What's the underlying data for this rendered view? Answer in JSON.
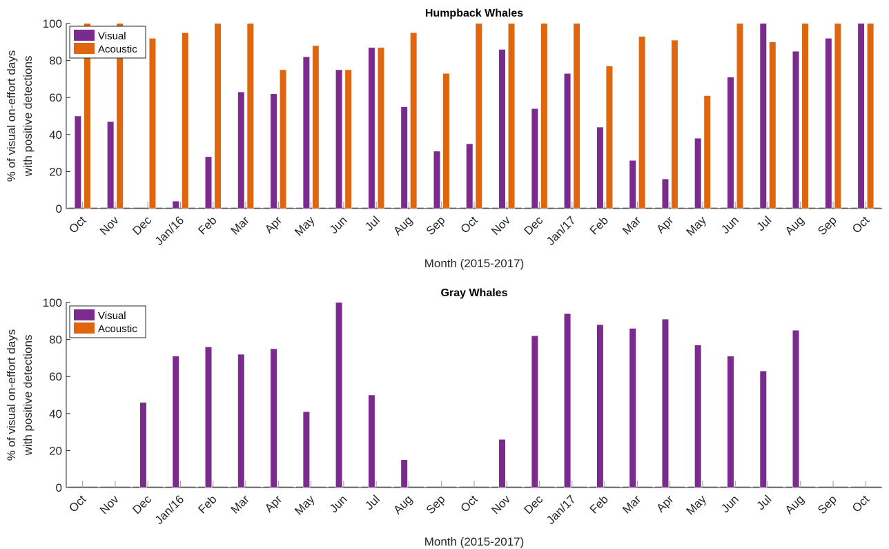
{
  "colors": {
    "visual": "#7B2A8E",
    "acoustic": "#E0650F",
    "axis": "#262626"
  },
  "chart_data": [
    {
      "type": "bar",
      "title": "Humpback Whales",
      "xlabel": "Month (2015-2017)",
      "ylabel_line1": "% of visual on-effort days",
      "ylabel_line2": "with positive detections",
      "ylim": [
        0,
        100
      ],
      "yticks": [
        "0",
        "20",
        "40",
        "60",
        "80",
        "100"
      ],
      "legend": "top-left",
      "grid": false,
      "categories": [
        "Oct",
        "Nov",
        "Dec",
        "Jan/16",
        "Feb",
        "Mar",
        "Apr",
        "May",
        "Jun",
        "Jul",
        "Aug",
        "Sep",
        "Oct",
        "Nov",
        "Dec",
        "Jan/17",
        "Feb",
        "Mar",
        "Apr",
        "May",
        "Jun",
        "Jul",
        "Aug",
        "Sep",
        "Oct"
      ],
      "series": [
        {
          "name": "Visual",
          "color": "#7B2A8E",
          "values": [
            50,
            47,
            0,
            4,
            28,
            63,
            62,
            82,
            75,
            87,
            55,
            31,
            35,
            86,
            54,
            73,
            44,
            26,
            16,
            38,
            71,
            100,
            85,
            92,
            100
          ]
        },
        {
          "name": "Acoustic",
          "color": "#E0650F",
          "values": [
            100,
            100,
            92,
            95,
            100,
            100,
            75,
            88,
            75,
            87,
            95,
            73,
            100,
            100,
            100,
            100,
            77,
            93,
            91,
            61,
            100,
            90,
            100,
            100,
            100
          ]
        }
      ]
    },
    {
      "type": "bar",
      "title": "Gray Whales",
      "xlabel": "Month (2015-2017)",
      "ylabel_line1": "% of visual on-effort days",
      "ylabel_line2": "with positive detections",
      "ylim": [
        0,
        100
      ],
      "yticks": [
        "0",
        "20",
        "40",
        "60",
        "80",
        "100"
      ],
      "legend": "top-left",
      "grid": false,
      "categories": [
        "Oct",
        "Nov",
        "Dec",
        "Jan/16",
        "Feb",
        "Mar",
        "Apr",
        "May",
        "Jun",
        "Jul",
        "Aug",
        "Sep",
        "Oct",
        "Nov",
        "Dec",
        "Jan/17",
        "Feb",
        "Mar",
        "Apr",
        "May",
        "Jun",
        "Jul",
        "Aug",
        "Sep",
        "Oct"
      ],
      "series": [
        {
          "name": "Visual",
          "color": "#7B2A8E",
          "values": [
            0,
            0,
            46,
            71,
            76,
            72,
            75,
            41,
            100,
            50,
            15,
            0,
            0,
            26,
            82,
            94,
            88,
            86,
            91,
            77,
            71,
            63,
            85,
            0,
            0
          ]
        },
        {
          "name": "Acoustic",
          "color": "#E0650F",
          "values": [
            0,
            0,
            0,
            0,
            0,
            0,
            0,
            0,
            0,
            0,
            0,
            0,
            0,
            0,
            0,
            0,
            0,
            0,
            0,
            0,
            0,
            0,
            0,
            0,
            0
          ]
        }
      ]
    }
  ]
}
